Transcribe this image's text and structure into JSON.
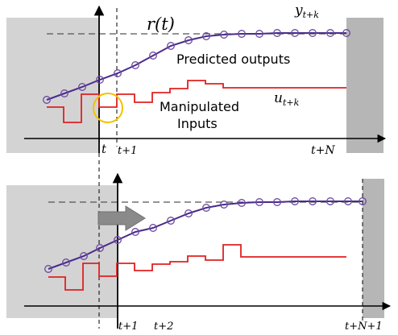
{
  "top_panel": {
    "reference_label": "r(t)",
    "output_label_base": "y",
    "output_label_sub": "t+k",
    "predicted_label": "Predicted outputs",
    "input_label_base": "u",
    "input_label_sub": "t+k",
    "manipulated_label_line1": "Manipulated",
    "manipulated_label_line2": "Inputs",
    "ticks": [
      "t",
      "t+1",
      "t+N"
    ]
  },
  "bottom_panel": {
    "ticks": [
      "t+1",
      "t+2",
      "t+N+1"
    ]
  },
  "colors": {
    "past_shade": "#d3d3d3",
    "future_shade": "#b6b6b6",
    "output_line": "#4a2a8c",
    "marker_edge": "#6a4aa0",
    "input_line": "#e02020",
    "highlight_circle": "#f2c200",
    "arrow_fill": "#8a8a8a",
    "reference_dash": "#555555"
  }
}
